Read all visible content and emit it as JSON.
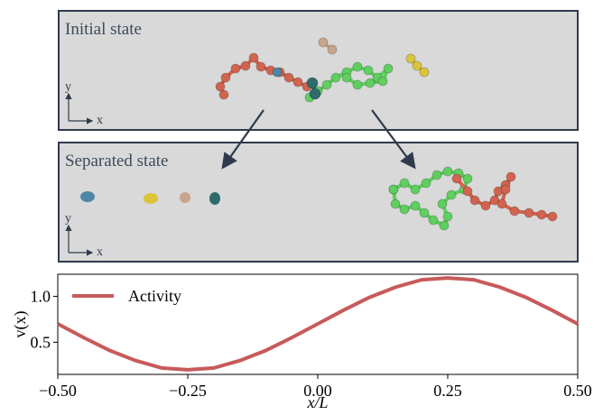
{
  "panels": [
    {
      "title": "Initial state",
      "axis_y": "y",
      "axis_x": "x"
    },
    {
      "title": "Separated state",
      "axis_y": "y",
      "axis_x": "x"
    }
  ],
  "chart_data": {
    "type": "line",
    "ylabel": "v(x)",
    "xlabel": "x/L",
    "x": [
      -0.5,
      -0.45,
      -0.4,
      -0.35,
      -0.3,
      -0.25,
      -0.2,
      -0.15,
      -0.1,
      -0.05,
      0,
      0.05,
      0.1,
      0.15,
      0.2,
      0.25,
      0.3,
      0.35,
      0.4,
      0.45,
      0.5
    ],
    "series": [
      {
        "name": "Activity",
        "color": "#c85a5a",
        "values": [
          0.7,
          0.55,
          0.41,
          0.3,
          0.22,
          0.2,
          0.22,
          0.3,
          0.41,
          0.55,
          0.7,
          0.85,
          0.99,
          1.1,
          1.18,
          1.2,
          1.18,
          1.1,
          0.99,
          0.85,
          0.7
        ]
      }
    ],
    "xlim": [
      -0.5,
      0.5
    ],
    "xticks": [
      {
        "value": -0.5,
        "label": "−0.50"
      },
      {
        "value": -0.25,
        "label": "−0.25"
      },
      {
        "value": 0,
        "label": "0.00"
      },
      {
        "value": 0.25,
        "label": "0.25"
      },
      {
        "value": 0.5,
        "label": "0.50"
      }
    ],
    "ylim": [
      0.15,
      1.24
    ],
    "yticks": [
      0.5,
      {
        "value": 1,
        "label": "1.0"
      }
    ],
    "legend": "upper left"
  }
}
